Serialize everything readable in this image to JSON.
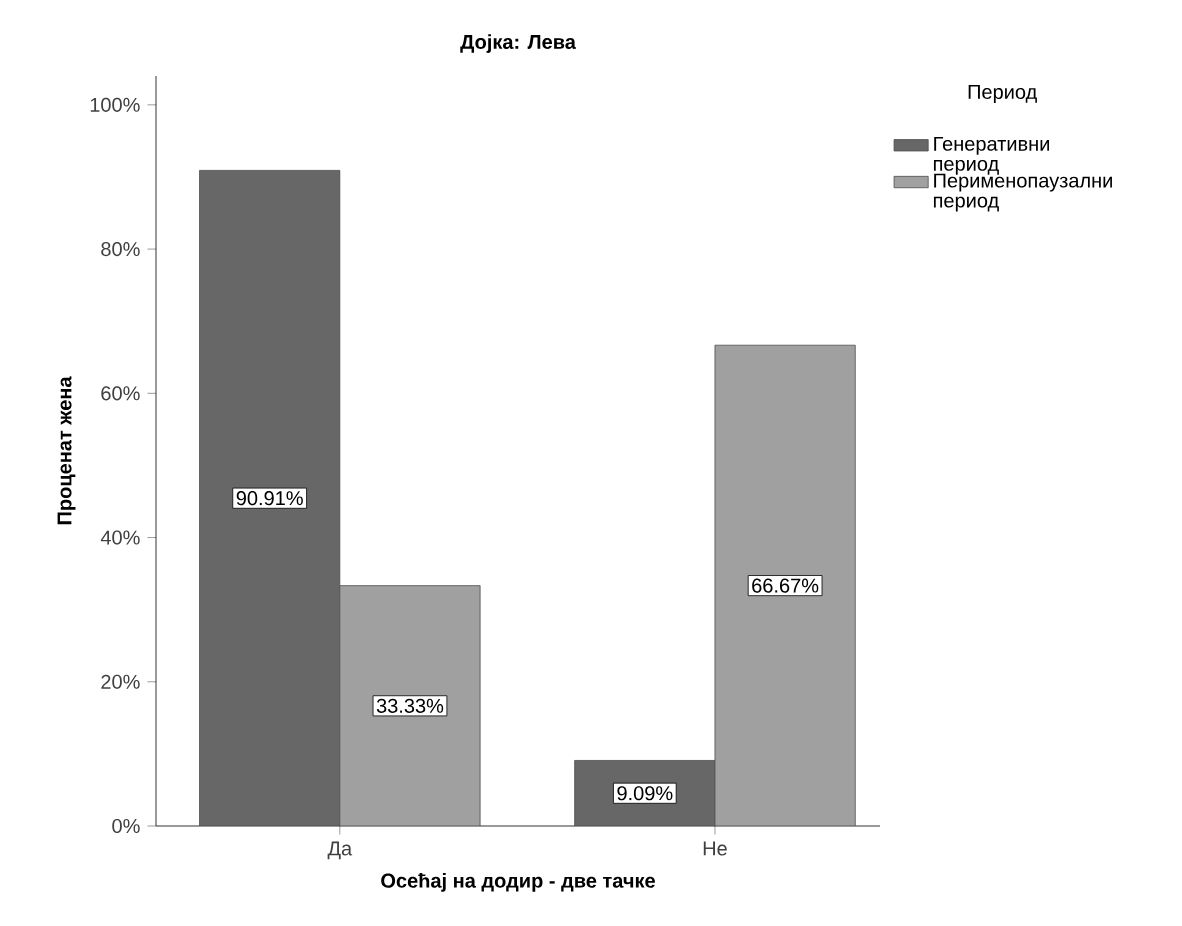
{
  "chart_data": {
    "type": "bar",
    "title": "Дојка: Лева",
    "xlabel": "Осећај на додир - две тачке",
    "ylabel": "Проценат жена",
    "legend_title": "Период",
    "categories": [
      "Да",
      "Не"
    ],
    "series": [
      {
        "name": "Генеративни период",
        "color": "#676767",
        "values": [
          90.91,
          9.09
        ],
        "value_labels": [
          "90.91%",
          "9.09%"
        ]
      },
      {
        "name": "Перименопаузални период",
        "color": "#a0a0a0",
        "values": [
          33.33,
          66.67
        ],
        "value_labels": [
          "33.33%",
          "66.67%"
        ]
      }
    ],
    "ylim": [
      0,
      104
    ],
    "yticks": [
      {
        "value": 0,
        "label": "0%"
      },
      {
        "value": 20,
        "label": "20%"
      },
      {
        "value": 40,
        "label": "40%"
      },
      {
        "value": 60,
        "label": "60%"
      },
      {
        "value": 80,
        "label": "80%"
      },
      {
        "value": 100,
        "label": "100%"
      }
    ],
    "grid": false,
    "legend": "top right"
  }
}
